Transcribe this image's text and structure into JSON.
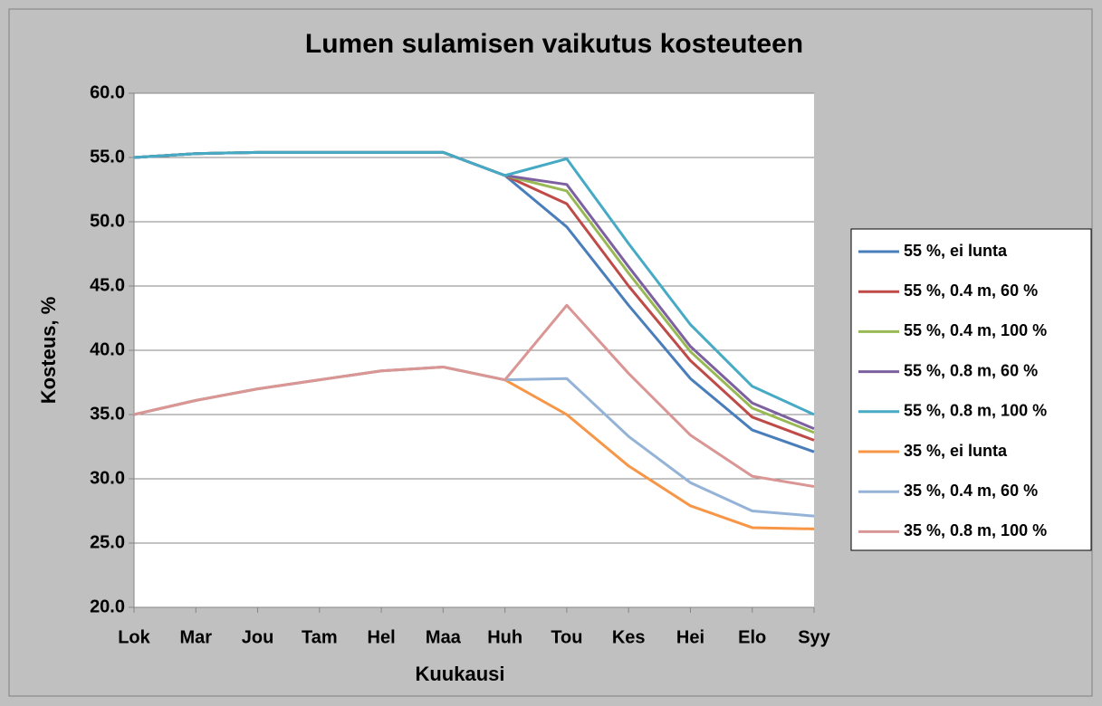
{
  "chart_data": {
    "type": "line",
    "title": "Lumen sulamisen vaikutus kosteuteen",
    "xlabel": "Kuukausi",
    "ylabel": "Kosteus, %",
    "categories": [
      "Lok",
      "Mar",
      "Jou",
      "Tam",
      "Hel",
      "Maa",
      "Huh",
      "Tou",
      "Kes",
      "Hei",
      "Elo",
      "Syy"
    ],
    "ylim": [
      20,
      60
    ],
    "yticks": [
      {
        "value": 20,
        "label": "20.0"
      },
      {
        "value": 25,
        "label": "25.0"
      },
      {
        "value": 30,
        "label": "30.0"
      },
      {
        "value": 35,
        "label": "35.0"
      },
      {
        "value": 40,
        "label": "40.0"
      },
      {
        "value": 45,
        "label": "45.0"
      },
      {
        "value": 50,
        "label": "50.0"
      },
      {
        "value": 55,
        "label": "55.0"
      },
      {
        "value": 60,
        "label": "60.0"
      }
    ],
    "grid": true,
    "legend": "right",
    "series": [
      {
        "name": "55 %, ei lunta",
        "color": "#4a7ebb",
        "values": [
          55.0,
          55.3,
          55.4,
          55.4,
          55.4,
          55.4,
          53.6,
          49.6,
          43.5,
          37.8,
          33.8,
          32.1
        ]
      },
      {
        "name": "55 %, 0.4 m, 60 %",
        "color": "#be4b48",
        "values": [
          55.0,
          55.3,
          55.4,
          55.4,
          55.4,
          55.4,
          53.6,
          51.4,
          45.0,
          39.2,
          34.8,
          33.0
        ]
      },
      {
        "name": "55 %, 0.4 m, 100 %",
        "color": "#98b954",
        "values": [
          55.0,
          55.3,
          55.4,
          55.4,
          55.4,
          55.4,
          53.6,
          52.4,
          46.0,
          39.9,
          35.5,
          33.6
        ]
      },
      {
        "name": "55 %, 0.8 m, 60 %",
        "color": "#7d60a0",
        "values": [
          55.0,
          55.3,
          55.4,
          55.4,
          55.4,
          55.4,
          53.6,
          52.9,
          46.5,
          40.3,
          35.9,
          33.9
        ]
      },
      {
        "name": "55 %, 0.8 m, 100 %",
        "color": "#46aac5",
        "values": [
          55.0,
          55.3,
          55.4,
          55.4,
          55.4,
          55.4,
          53.6,
          54.9,
          48.3,
          42.0,
          37.2,
          35.0
        ]
      },
      {
        "name": "35 %, ei lunta",
        "color": "#f79646",
        "values": [
          35.0,
          36.1,
          37.0,
          37.7,
          38.4,
          38.7,
          37.7,
          35.0,
          31.0,
          27.9,
          26.2,
          26.1
        ]
      },
      {
        "name": "35 %, 0.4 m, 60 %",
        "color": "#95b3d7",
        "values": [
          35.0,
          36.1,
          37.0,
          37.7,
          38.4,
          38.7,
          37.7,
          37.8,
          33.3,
          29.7,
          27.5,
          27.1
        ]
      },
      {
        "name": "35 %, 0.8 m, 100 %",
        "color": "#d99694",
        "values": [
          35.0,
          36.1,
          37.0,
          37.7,
          38.4,
          38.7,
          37.7,
          43.5,
          38.2,
          33.4,
          30.2,
          29.4
        ]
      }
    ]
  }
}
